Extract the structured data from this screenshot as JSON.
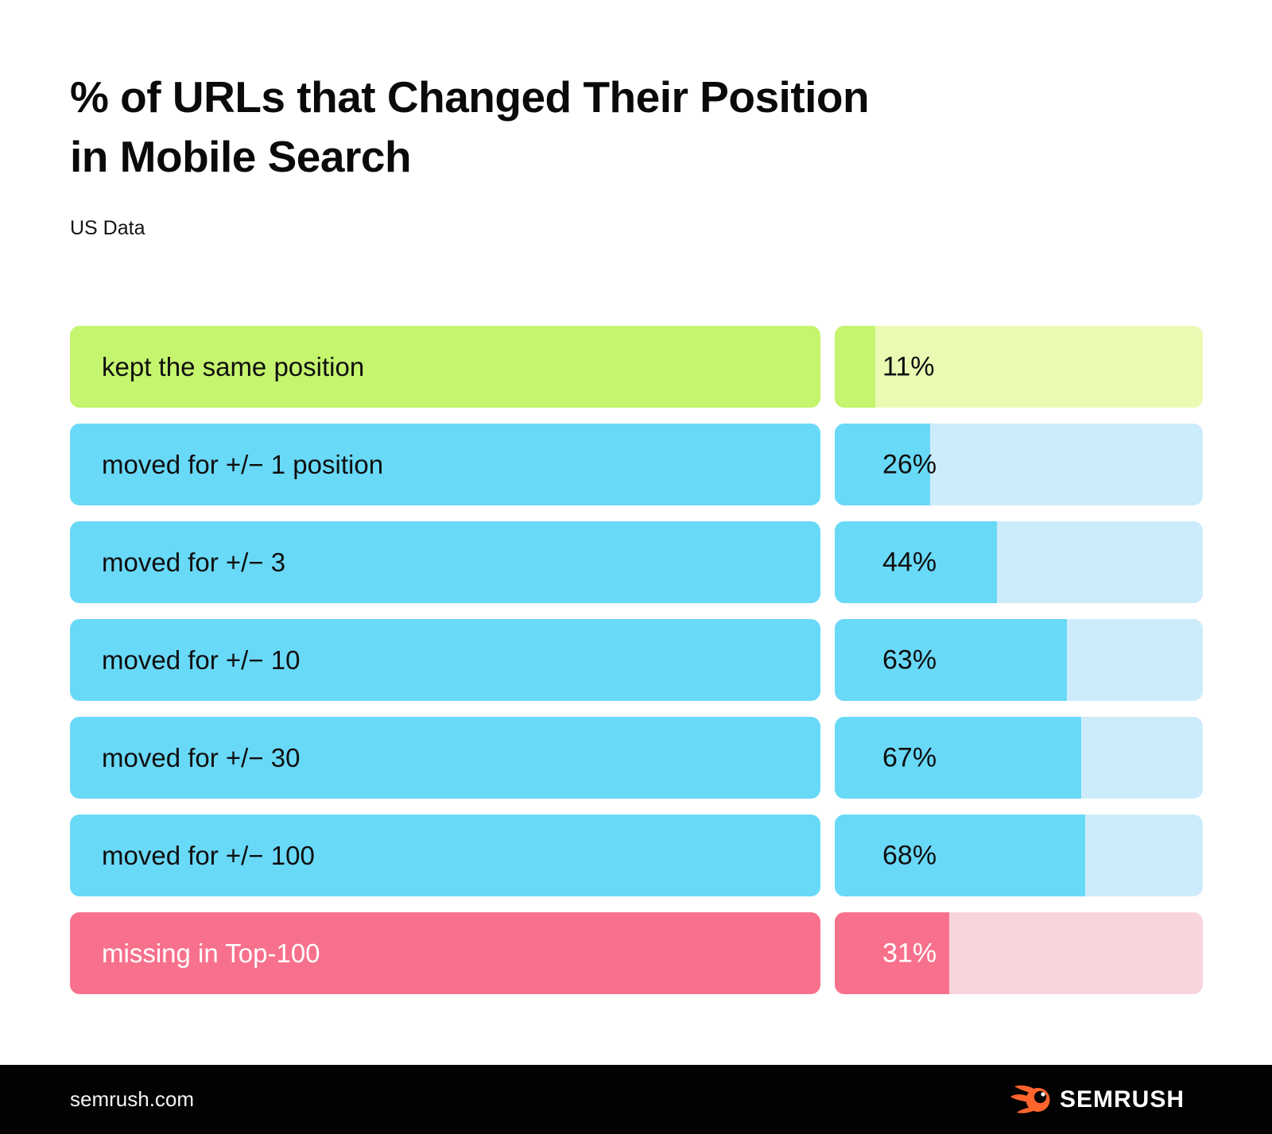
{
  "page": {
    "title_line1": "% of URLs that Changed Their Position",
    "title_line2": "in Mobile Search",
    "subtitle": "US Data"
  },
  "colors": {
    "green_solid": "#c5f46e",
    "green_light": "#eafab3",
    "blue_solid": "#69d9f8",
    "blue_light": "#cdecfb",
    "pink_solid": "#f8718c",
    "pink_light": "#f8d4dc",
    "footer_background": "#020202",
    "brand_orange": "#ff642d",
    "text_dark": "#0f0f0f",
    "text_light": "#ffffff"
  },
  "chart_data": {
    "type": "bar",
    "orientation": "horizontal",
    "title": "% of URLs that Changed Their Position in Mobile Search",
    "subtitle": "US Data",
    "unit": "%",
    "xlim": [
      0,
      100
    ],
    "grid": false,
    "legend": false,
    "categories": [
      "kept the same position",
      "moved for +/− 1 position",
      "moved for +/− 3",
      "moved for +/− 10",
      "moved for +/− 30",
      "moved for +/− 100",
      "missing in Top-100"
    ],
    "values": [
      11,
      26,
      44,
      63,
      67,
      68,
      31
    ],
    "rows": [
      {
        "label": "kept the same position",
        "value": 11,
        "value_label": "11%",
        "color": "#c5f46e",
        "track_color": "#eafab3",
        "text_color": "#0f0f0f"
      },
      {
        "label": "moved for +/− 1 position",
        "value": 26,
        "value_label": "26%",
        "color": "#69d9f8",
        "track_color": "#cdecfb",
        "text_color": "#0f0f0f"
      },
      {
        "label": "moved for +/− 3",
        "value": 44,
        "value_label": "44%",
        "color": "#69d9f8",
        "track_color": "#cdecfb",
        "text_color": "#0f0f0f"
      },
      {
        "label": "moved for +/− 10",
        "value": 63,
        "value_label": "63%",
        "color": "#69d9f8",
        "track_color": "#cdecfb",
        "text_color": "#0f0f0f"
      },
      {
        "label": "moved for +/− 30",
        "value": 67,
        "value_label": "67%",
        "color": "#69d9f8",
        "track_color": "#cdecfb",
        "text_color": "#0f0f0f"
      },
      {
        "label": "moved for +/− 100",
        "value": 68,
        "value_label": "68%",
        "color": "#69d9f8",
        "track_color": "#cdecfb",
        "text_color": "#0f0f0f"
      },
      {
        "label": "missing in Top-100",
        "value": 31,
        "value_label": "31%",
        "color": "#f8718c",
        "track_color": "#f8d4dc",
        "text_color": "#ffffff"
      }
    ]
  },
  "footer": {
    "site": "semrush.com",
    "brand": "SEMRUSH",
    "logo_icon": "semrush-flame-icon"
  }
}
